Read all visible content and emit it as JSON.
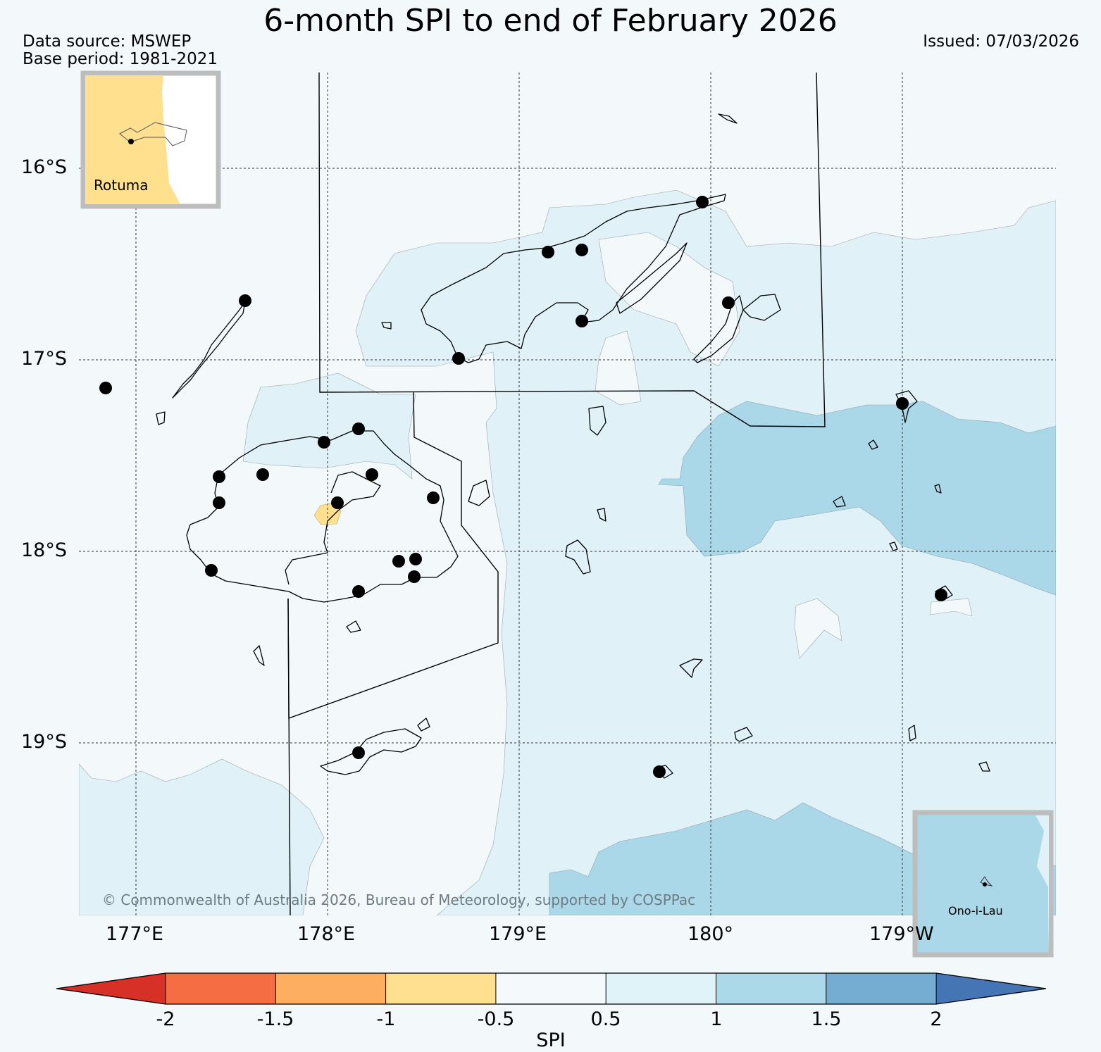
{
  "header": {
    "title": "6-month SPI to end of February 2026",
    "data_source": "Data source: MSWEP",
    "base_period": "Base period: 1981-2021",
    "issued": "Issued: 07/03/2026"
  },
  "map": {
    "lat_labels": [
      "16°S",
      "17°S",
      "18°S",
      "19°S"
    ],
    "lon_labels": [
      "177°E",
      "178°E",
      "179°E",
      "180°",
      "179°W"
    ],
    "copyright": "© Commonwealth of Australia 2026, Bureau of Meteorology, supported by COSPPac",
    "insets": [
      {
        "name": "Rotuma"
      },
      {
        "name": "Ono-i-Lau"
      }
    ],
    "colors": {
      "background": "#f3f8fb",
      "spi_neg1_to_neg05": "#ffe08f",
      "spi_05_to_1": "#e0f2f8",
      "spi_1_to_15": "#abd8e8"
    }
  },
  "colorbar": {
    "label": "SPI",
    "ticks": [
      "-2",
      "-1.5",
      "-1",
      "-0.5",
      "0.5",
      "1",
      "1.5",
      "2"
    ],
    "colors": [
      "#d73027",
      "#f46d43",
      "#fdae61",
      "#fee090",
      "#f4f9fc",
      "#e0f3f8",
      "#abd9e9",
      "#74add1",
      "#4575b4"
    ]
  }
}
